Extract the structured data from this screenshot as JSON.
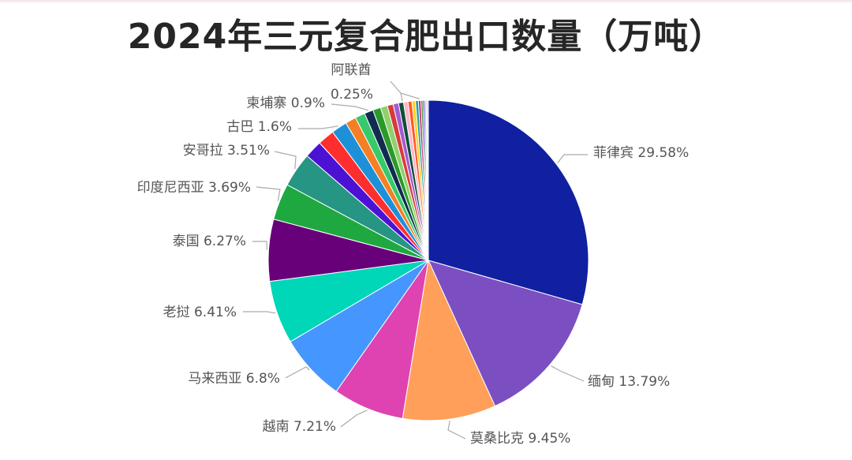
{
  "chart_data": {
    "type": "pie",
    "title": "2024年三元复合肥出口数量（万吨）",
    "legend": "none",
    "slices": [
      {
        "name": "菲律宾",
        "label": "29.58%",
        "value": 29.58,
        "color": "#1020a0"
      },
      {
        "name": "缅甸",
        "label": "13.79%",
        "value": 13.79,
        "color": "#7b4fc2"
      },
      {
        "name": "莫桑比克",
        "label": "9.45%",
        "value": 9.45,
        "color": "#ff9f5a"
      },
      {
        "name": "越南",
        "label": "7.21%",
        "value": 7.21,
        "color": "#de43b1"
      },
      {
        "name": "马来西亚",
        "label": "6.8%",
        "value": 6.8,
        "color": "#4596ff"
      },
      {
        "name": "老挝",
        "label": "6.41%",
        "value": 6.41,
        "color": "#00d6b8"
      },
      {
        "name": "泰国",
        "label": "6.27%",
        "value": 6.27,
        "color": "#68007a"
      },
      {
        "name": "印度尼西亚",
        "label": "3.69%",
        "value": 3.69,
        "color": "#1fa840"
      },
      {
        "name": "安哥拉",
        "label": "3.51%",
        "value": 3.51,
        "color": "#279583"
      },
      {
        "name": "",
        "label": "",
        "value": 1.8,
        "color": "#4b12d4"
      },
      {
        "name": "",
        "label": "",
        "value": 1.7,
        "color": "#ff2e2e"
      },
      {
        "name": "古巴",
        "label": "1.6%",
        "value": 1.6,
        "color": "#1e90d8"
      },
      {
        "name": "",
        "label": "",
        "value": 1.1,
        "color": "#f47f24"
      },
      {
        "name": "",
        "label": "",
        "value": 1.0,
        "color": "#37c96b"
      },
      {
        "name": "柬埔寨",
        "label": "0.9%",
        "value": 0.9,
        "color": "#112c50"
      },
      {
        "name": "",
        "label": "",
        "value": 0.8,
        "color": "#2a9a2a"
      },
      {
        "name": "",
        "label": "",
        "value": 0.7,
        "color": "#8fd16b"
      },
      {
        "name": "",
        "label": "",
        "value": 0.6,
        "color": "#d83a3a"
      },
      {
        "name": "",
        "label": "",
        "value": 0.55,
        "color": "#a45bd2"
      },
      {
        "name": "",
        "label": "",
        "value": 0.5,
        "color": "#0e4f3a"
      },
      {
        "name": "",
        "label": "",
        "value": 0.45,
        "color": "#ffb6c8"
      },
      {
        "name": "",
        "label": "",
        "value": 0.4,
        "color": "#ff5a2a"
      },
      {
        "name": "",
        "label": "",
        "value": 0.35,
        "color": "#ffd21e"
      },
      {
        "name": "",
        "label": "",
        "value": 0.3,
        "color": "#23a3a3"
      },
      {
        "name": "阿联酋",
        "label": "0.25%",
        "value": 0.25,
        "color": "#c82a7a"
      },
      {
        "name": "",
        "label": "",
        "value": 0.2,
        "color": "#3b8c3b"
      },
      {
        "name": "",
        "label": "",
        "value": 0.18,
        "color": "#5a3fd0"
      },
      {
        "name": "",
        "label": "",
        "value": 0.15,
        "color": "#60e060"
      },
      {
        "name": "",
        "label": "",
        "value": 0.12,
        "color": "#b0b0b0"
      },
      {
        "name": "",
        "label": "",
        "value": 0.1,
        "color": "#8a2be2"
      }
    ]
  }
}
